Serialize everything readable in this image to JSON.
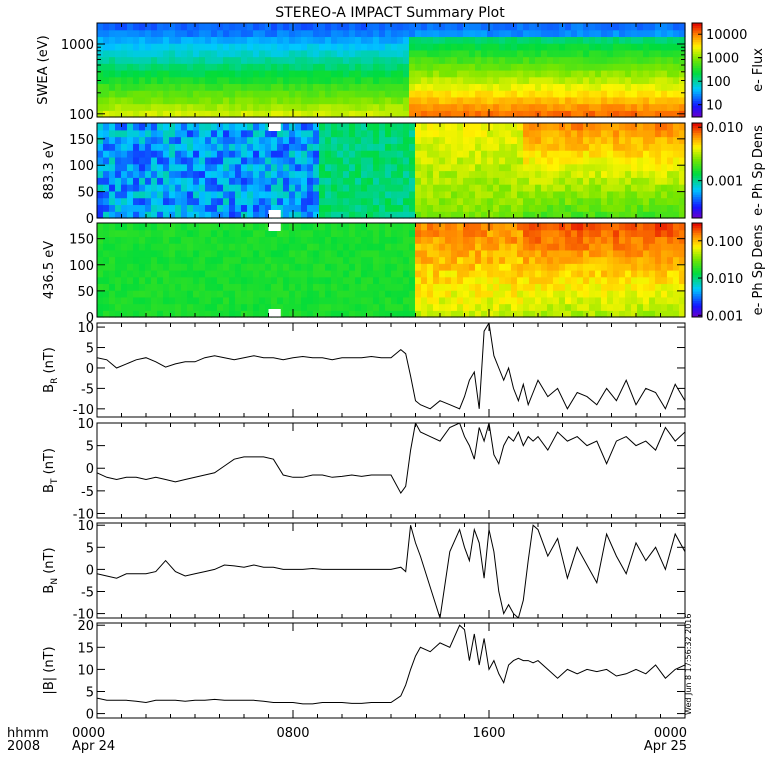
{
  "title": "STEREO-A IMPACT Summary Plot",
  "stamp": "Wed Jun  8 17:56:32 2016",
  "time_axis": {
    "row1_label": "hhmm",
    "row2_label": "2008",
    "ticks": [
      {
        "hour": 0,
        "label": "0000",
        "date": "Apr 24"
      },
      {
        "hour": 8,
        "label": "0800",
        "date": ""
      },
      {
        "hour": 16,
        "label": "1600",
        "date": ""
      },
      {
        "hour": 24,
        "label": "0000",
        "date": "Apr 25"
      }
    ],
    "range_hours": [
      0,
      24
    ],
    "minor_tick_step_hours": 1
  },
  "chart_data": [
    {
      "type": "heatmap",
      "id": "swea",
      "ylabel": "SWEA (eV)",
      "yscale": "log",
      "ylim": [
        90,
        2000
      ],
      "yticks": [
        100,
        1000
      ],
      "ytick_labels": [
        "100",
        "1000"
      ],
      "colorbar": {
        "label": "e- Flux",
        "scale": "log",
        "ticks": [
          "10",
          "100",
          "1000",
          "10000"
        ],
        "tick_values": [
          10,
          100,
          1000,
          10000
        ],
        "range": [
          3,
          30000
        ]
      },
      "regions": [
        {
          "x": [
            0,
            12.8
          ],
          "low_energy_level": "yellow-green",
          "high_energy_level": "blue"
        },
        {
          "x": [
            12.8,
            24
          ],
          "low_energy_level": "red",
          "high_energy_level": "blue"
        }
      ]
    },
    {
      "type": "heatmap",
      "id": "pad_883",
      "ylabel": "883.3 eV",
      "ylim": [
        0,
        180
      ],
      "yticks": [
        0,
        50,
        100,
        150
      ],
      "colorbar": {
        "label": "e- Ph Sp Dens",
        "scale": "log",
        "ticks": [
          "0.001",
          "0.010"
        ],
        "tick_values": [
          0.001,
          0.01
        ],
        "range": [
          0.0002,
          0.012
        ]
      },
      "data_gap_hours": [
        7.0,
        7.5
      ]
    },
    {
      "type": "heatmap",
      "id": "pad_436",
      "ylabel": "436.5 eV",
      "ylim": [
        0,
        180
      ],
      "yticks": [
        0,
        50,
        100,
        150
      ],
      "colorbar": {
        "label": "e- Ph Sp Dens",
        "scale": "log",
        "ticks": [
          "0.001",
          "0.010",
          "0.100"
        ],
        "tick_values": [
          0.001,
          0.01,
          0.1
        ],
        "range": [
          0.0009,
          0.3
        ]
      },
      "data_gap_hours": [
        7.0,
        7.5
      ]
    },
    {
      "type": "line",
      "id": "br",
      "ylabel": "B",
      "ylabel_sub": "R",
      "ylabel_unit": "(nT)",
      "ylim": [
        -12,
        11
      ],
      "yticks": [
        -10,
        -5,
        0,
        5,
        10
      ],
      "x": [
        0,
        0.4,
        0.8,
        1.2,
        1.6,
        2,
        2.4,
        2.8,
        3.2,
        3.6,
        4,
        4.4,
        4.8,
        5.2,
        5.6,
        6,
        6.4,
        6.8,
        7.2,
        7.6,
        8,
        8.4,
        8.8,
        9.2,
        9.6,
        10,
        10.4,
        10.8,
        11.2,
        11.6,
        12,
        12.4,
        12.6,
        12.8,
        13,
        13.2,
        13.6,
        14,
        14.4,
        14.8,
        15,
        15.2,
        15.4,
        15.6,
        15.8,
        16,
        16.2,
        16.4,
        16.6,
        16.8,
        17,
        17.2,
        17.4,
        17.6,
        17.8,
        18,
        18.4,
        18.8,
        19.2,
        19.6,
        20,
        20.4,
        20.8,
        21.2,
        21.6,
        22,
        22.4,
        22.8,
        23.2,
        23.6,
        24
      ],
      "y": [
        2.5,
        2,
        0,
        1,
        2,
        2.5,
        1.5,
        0.2,
        1,
        1.5,
        1.5,
        2.5,
        3,
        2.5,
        2,
        2.5,
        3,
        2.5,
        2.5,
        2,
        2.5,
        2.8,
        2.5,
        2.5,
        2,
        2.5,
        2.5,
        2.5,
        2.8,
        2.5,
        2.5,
        4.5,
        3.5,
        -2,
        -8,
        -9,
        -10,
        -8,
        -9,
        -10,
        -7,
        -3,
        -1,
        -10,
        9,
        11,
        3,
        0,
        -3,
        0,
        -5,
        -8,
        -4,
        -9,
        -6,
        -3,
        -7,
        -5,
        -10,
        -6,
        -7,
        -9,
        -5,
        -8,
        -3,
        -9,
        -5,
        -6,
        -10,
        -4,
        -8
      ]
    },
    {
      "type": "line",
      "id": "bt",
      "ylabel": "B",
      "ylabel_sub": "T",
      "ylabel_unit": "(nT)",
      "ylim": [
        -11,
        10
      ],
      "yticks": [
        -10,
        -5,
        0,
        5,
        10
      ],
      "x": [
        0,
        0.4,
        0.8,
        1.2,
        1.6,
        2,
        2.4,
        2.8,
        3.2,
        3.6,
        4,
        4.4,
        4.8,
        5.2,
        5.6,
        6,
        6.4,
        6.8,
        7.2,
        7.6,
        8,
        8.4,
        8.8,
        9.2,
        9.6,
        10,
        10.4,
        10.8,
        11.2,
        11.6,
        12,
        12.4,
        12.6,
        12.8,
        13,
        13.2,
        13.6,
        14,
        14.4,
        14.8,
        15,
        15.2,
        15.4,
        15.6,
        15.8,
        16,
        16.2,
        16.4,
        16.6,
        16.8,
        17,
        17.2,
        17.4,
        17.6,
        17.8,
        18,
        18.4,
        18.8,
        19.2,
        19.6,
        20,
        20.4,
        20.8,
        21.2,
        21.6,
        22,
        22.4,
        22.8,
        23.2,
        23.6,
        24
      ],
      "y": [
        -1,
        -2,
        -2.5,
        -2,
        -2,
        -2.5,
        -2,
        -2.5,
        -3,
        -2.5,
        -2,
        -1.5,
        -1,
        0.5,
        2,
        2.5,
        2.5,
        2.5,
        2,
        -1.5,
        -2,
        -2,
        -1.5,
        -1.5,
        -2,
        -1.8,
        -1.5,
        -1.8,
        -1.5,
        -1.5,
        -1.5,
        -5.5,
        -4,
        4,
        10,
        8,
        7,
        6,
        9,
        10,
        7,
        5,
        2,
        9,
        6,
        10,
        3,
        1,
        5,
        7,
        6,
        8,
        5,
        7,
        6,
        7,
        4,
        8,
        6,
        7,
        5,
        6,
        1,
        6,
        7,
        5,
        6,
        4,
        9,
        6,
        8
      ]
    },
    {
      "type": "line",
      "id": "bn",
      "ylabel": "B",
      "ylabel_sub": "N",
      "ylabel_unit": "(nT)",
      "ylim": [
        -11,
        10.5
      ],
      "yticks": [
        -10,
        -5,
        0,
        5,
        10
      ],
      "x": [
        0,
        0.4,
        0.8,
        1.2,
        1.6,
        2,
        2.4,
        2.8,
        3.2,
        3.6,
        4,
        4.4,
        4.8,
        5.2,
        5.6,
        6,
        6.4,
        6.8,
        7.2,
        7.6,
        8,
        8.4,
        8.8,
        9.2,
        9.6,
        10,
        10.4,
        10.8,
        11.2,
        11.6,
        12,
        12.4,
        12.6,
        12.8,
        13,
        13.2,
        13.6,
        14,
        14.4,
        14.8,
        15,
        15.2,
        15.4,
        15.6,
        15.8,
        16,
        16.2,
        16.4,
        16.6,
        16.8,
        17,
        17.2,
        17.4,
        17.6,
        17.8,
        18,
        18.4,
        18.8,
        19.2,
        19.6,
        20,
        20.4,
        20.8,
        21.2,
        21.6,
        22,
        22.4,
        22.8,
        23.2,
        23.6,
        24
      ],
      "y": [
        -1,
        -1.5,
        -2,
        -1,
        -1,
        -1,
        -0.5,
        2,
        -0.5,
        -1.5,
        -1,
        -0.5,
        0,
        1,
        0.8,
        0.5,
        1,
        0.5,
        0.5,
        0,
        0,
        0,
        0.2,
        0,
        0,
        0,
        0,
        0,
        0,
        0,
        0,
        0.5,
        -0.5,
        10,
        6,
        3,
        -4,
        -11,
        4,
        9,
        5,
        2,
        9,
        6,
        -2,
        9,
        4,
        -5,
        -10,
        -8,
        -10,
        -11,
        -7,
        2,
        10,
        9,
        3,
        7,
        -2,
        5,
        1,
        -3,
        8,
        3,
        -1,
        6,
        2,
        5,
        0,
        8,
        4
      ]
    },
    {
      "type": "line",
      "id": "bmag",
      "ylabel": "|B| (nT)",
      "ylim": [
        -1,
        20.5
      ],
      "yticks": [
        0,
        5,
        10,
        15,
        20
      ],
      "x": [
        0,
        0.4,
        0.8,
        1.2,
        1.6,
        2,
        2.4,
        2.8,
        3.2,
        3.6,
        4,
        4.4,
        4.8,
        5.2,
        5.6,
        6,
        6.4,
        6.8,
        7.2,
        7.6,
        8,
        8.4,
        8.8,
        9.2,
        9.6,
        10,
        10.4,
        10.8,
        11.2,
        11.6,
        12,
        12.4,
        12.6,
        12.8,
        13,
        13.2,
        13.6,
        14,
        14.4,
        14.8,
        15,
        15.2,
        15.4,
        15.6,
        15.8,
        16,
        16.2,
        16.4,
        16.6,
        16.8,
        17,
        17.2,
        17.4,
        17.6,
        17.8,
        18,
        18.4,
        18.8,
        19.2,
        19.6,
        20,
        20.4,
        20.8,
        21.2,
        21.6,
        22,
        22.4,
        22.8,
        23.2,
        23.6,
        24
      ],
      "y": [
        3.5,
        3,
        3,
        3,
        2.8,
        2.5,
        3,
        3,
        3,
        2.8,
        3,
        3,
        3.2,
        3,
        3,
        3,
        3,
        2.8,
        2.5,
        2.5,
        2.5,
        2.2,
        2.2,
        2.5,
        2.5,
        2.5,
        2.3,
        2.3,
        2.5,
        2.5,
        2.5,
        4,
        6.5,
        10,
        13,
        15,
        14,
        16,
        15,
        20,
        19,
        12,
        18,
        11,
        17,
        10,
        12,
        9,
        7,
        11,
        12,
        12.5,
        12,
        12,
        11.5,
        12,
        10,
        8,
        10,
        9,
        10,
        9.5,
        10,
        8.5,
        9,
        10,
        9,
        11,
        8,
        10,
        11
      ]
    }
  ]
}
